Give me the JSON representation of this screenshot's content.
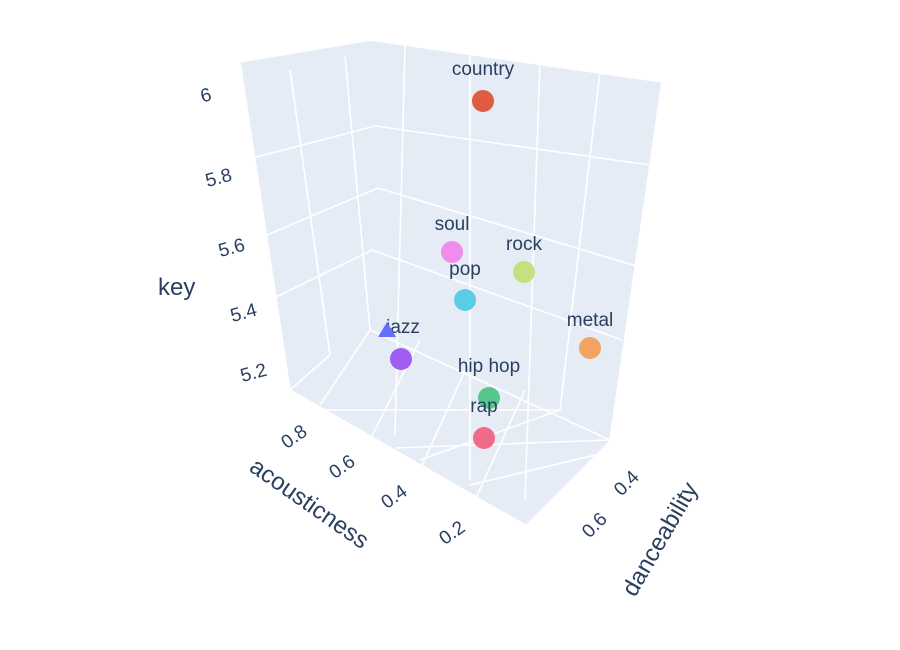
{
  "chart_data": {
    "type": "scatter3d",
    "axes": {
      "x": {
        "title": "acousticness",
        "ticks": [
          "0.8",
          "0.6",
          "0.4",
          "0.2"
        ],
        "tick_values": [
          0.8,
          0.6,
          0.4,
          0.2
        ]
      },
      "y": {
        "title": "danceability",
        "ticks": [
          "0.4",
          "0.6"
        ],
        "tick_values": [
          0.4,
          0.6
        ]
      },
      "z": {
        "title": "key",
        "ticks": [
          "6",
          "5.8",
          "5.6",
          "5.4",
          "5.2"
        ],
        "tick_values": [
          6,
          5.8,
          5.6,
          5.4,
          5.2
        ]
      }
    },
    "points": [
      {
        "label": "country",
        "color": "#e05c41",
        "acousticness": 0.35,
        "danceability": 0.5,
        "key": 6.02
      },
      {
        "label": "soul",
        "color": "#f28ded",
        "acousticness": 0.44,
        "danceability": 0.52,
        "key": 5.63
      },
      {
        "label": "rock",
        "color": "#c4e17f",
        "acousticness": 0.22,
        "danceability": 0.5,
        "key": 5.6
      },
      {
        "label": "pop",
        "color": "#5bcde6",
        "acousticness": 0.33,
        "danceability": 0.62,
        "key": 5.52
      },
      {
        "label": "metal",
        "color": "#f4a261",
        "acousticness": 0.05,
        "danceability": 0.44,
        "key": 5.3
      },
      {
        "label": "jazz",
        "color": "#a05df2",
        "acousticness": 0.72,
        "danceability": 0.56,
        "key": 5.28
      },
      {
        "label": "hip hop",
        "color": "#55c78d",
        "acousticness": 0.18,
        "danceability": 0.66,
        "key": 5.2
      },
      {
        "label": "rap",
        "color": "#ef6b8a",
        "acousticness": 0.16,
        "danceability": 0.72,
        "key": 5.1
      },
      {
        "label": "",
        "color": "#636efa",
        "acousticness": 0.85,
        "danceability": 0.4,
        "key": 5.32
      }
    ],
    "grid": true,
    "legend": "none"
  }
}
